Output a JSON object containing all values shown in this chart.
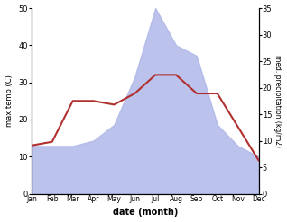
{
  "months": [
    "Jan",
    "Feb",
    "Mar",
    "Apr",
    "May",
    "Jun",
    "Jul",
    "Aug",
    "Sep",
    "Oct",
    "Nov",
    "Dec"
  ],
  "temp": [
    13,
    14,
    25,
    25,
    24,
    27,
    32,
    32,
    27,
    27,
    18,
    9
  ],
  "precip": [
    9,
    9,
    9,
    10,
    13,
    22,
    35,
    28,
    26,
    13,
    9,
    7
  ],
  "temp_color": "#b03030",
  "precip_color": "#b0b8e8",
  "temp_ylim": [
    0,
    50
  ],
  "precip_ylim": [
    0,
    35
  ],
  "temp_yticks": [
    0,
    10,
    20,
    30,
    40,
    50
  ],
  "precip_yticks": [
    0,
    5,
    10,
    15,
    20,
    25,
    30,
    35
  ],
  "xlabel": "date (month)",
  "ylabel_left": "max temp (C)",
  "ylabel_right": "med. precipitation (kg/m2)",
  "background_color": "#ffffff",
  "linewidth": 1.5
}
